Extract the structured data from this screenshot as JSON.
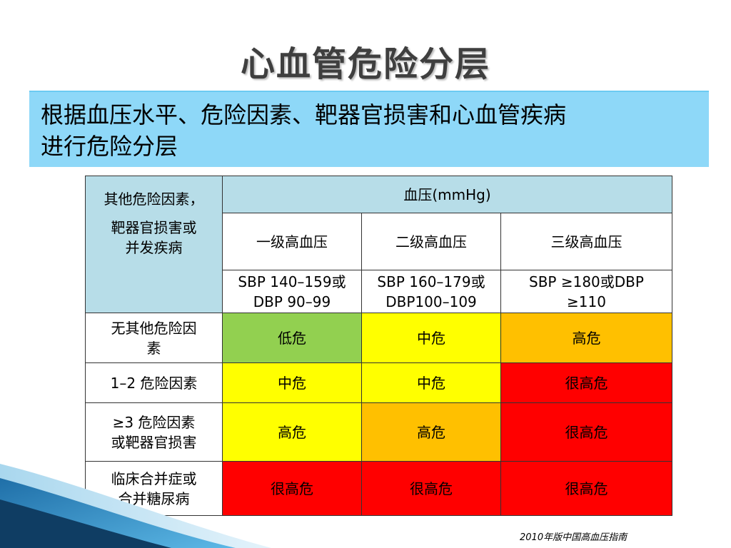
{
  "slide": {
    "title": "心血管危险分层",
    "subtitle_line1": "根据血压水平、危险因素、靶器官损害和心血管疾病",
    "subtitle_line2": "进行危险分层",
    "source": "2010年版中国高血压指南"
  },
  "table": {
    "corner_line1": "其他危险因素，",
    "corner_line2": "靶器官损害或",
    "corner_line3": "并发疾病",
    "bp_header": "血压(mmHg)",
    "grades": [
      {
        "name": "一级高血压",
        "range_line1": "SBP 140–159或",
        "range_line2": "DBP 90–99"
      },
      {
        "name": "二级高血压",
        "range_line1": "SBP 160–179或",
        "range_line2": "DBP100–109"
      },
      {
        "name": "三级高血压",
        "range_line1": "SBP ≥180或DBP",
        "range_line2": "≥110"
      }
    ],
    "rows": [
      {
        "factor_line1": "无其他危险因",
        "factor_line2": "素",
        "cells": [
          "低危",
          "中危",
          "高危"
        ]
      },
      {
        "factor_line1": "1–2 危险因素",
        "factor_line2": "",
        "cells": [
          "中危",
          "中危",
          "很高危"
        ]
      },
      {
        "factor_line1": "≥3 危险因素",
        "factor_line2": "或靶器官损害",
        "cells": [
          "高危",
          "高危",
          "很高危"
        ]
      },
      {
        "factor_line1": "临床合并症或",
        "factor_line2": "合并糖尿病",
        "cells": [
          "很高危",
          "很高危",
          "很高危"
        ]
      }
    ]
  },
  "colors": {
    "low": "#92d050",
    "medium": "#ffff00",
    "high": "#ffc000",
    "very_high": "#ff0000",
    "header": "#b7dde8",
    "subtitle_bg": "#8ed8f8"
  }
}
